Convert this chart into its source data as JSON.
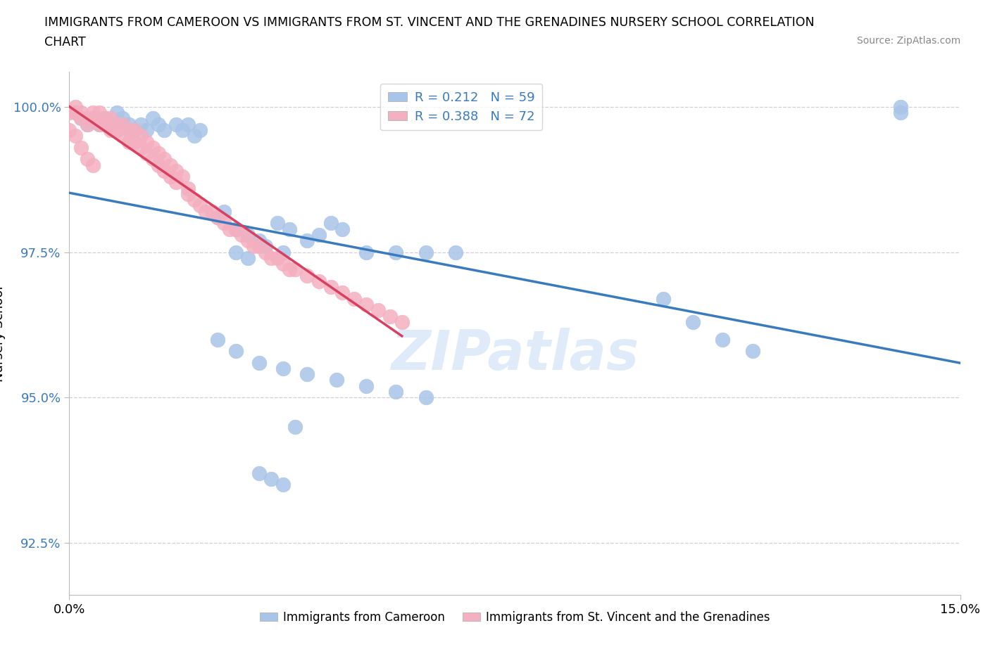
{
  "title_line1": "IMMIGRANTS FROM CAMEROON VS IMMIGRANTS FROM ST. VINCENT AND THE GRENADINES NURSERY SCHOOL CORRELATION",
  "title_line2": "CHART",
  "source": "Source: ZipAtlas.com",
  "ylabel": "Nursery School",
  "xlim": [
    0.0,
    0.15
  ],
  "ylim": [
    0.916,
    1.006
  ],
  "yticks": [
    0.925,
    0.95,
    0.975,
    1.0
  ],
  "ytick_labels": [
    "92.5%",
    "95.0%",
    "97.5%",
    "100.0%"
  ],
  "xticks": [
    0.0,
    0.15
  ],
  "xtick_labels": [
    "0.0%",
    "15.0%"
  ],
  "color_blue": "#a8c4e8",
  "color_pink": "#f4afc0",
  "trendline_blue": "#3a7abf",
  "trendline_pink": "#d94060",
  "R_blue": 0.212,
  "N_blue": 59,
  "R_pink": 0.388,
  "N_pink": 72,
  "watermark": "ZIPatlas",
  "background_color": "#ffffff",
  "grid_color": "#d0d0d0",
  "legend_text_color": "#3a7abf",
  "blue_x": [
    0.001,
    0.002,
    0.003,
    0.004,
    0.005,
    0.006,
    0.007,
    0.008,
    0.009,
    0.01,
    0.011,
    0.012,
    0.013,
    0.014,
    0.015,
    0.016,
    0.018,
    0.019,
    0.02,
    0.021,
    0.022,
    0.025,
    0.026,
    0.028,
    0.03,
    0.032,
    0.035,
    0.037,
    0.04,
    0.042,
    0.044,
    0.046,
    0.028,
    0.03,
    0.033,
    0.036,
    0.05,
    0.055,
    0.06,
    0.065,
    0.025,
    0.028,
    0.032,
    0.036,
    0.04,
    0.045,
    0.05,
    0.055,
    0.06,
    0.038,
    0.032,
    0.034,
    0.036,
    0.14,
    0.14,
    0.1,
    0.105,
    0.11,
    0.115
  ],
  "blue_y": [
    0.999,
    0.998,
    0.997,
    0.998,
    0.997,
    0.998,
    0.997,
    0.999,
    0.998,
    0.997,
    0.996,
    0.997,
    0.996,
    0.998,
    0.997,
    0.996,
    0.997,
    0.996,
    0.997,
    0.995,
    0.996,
    0.981,
    0.982,
    0.979,
    0.978,
    0.977,
    0.98,
    0.979,
    0.977,
    0.978,
    0.98,
    0.979,
    0.975,
    0.974,
    0.976,
    0.975,
    0.975,
    0.975,
    0.975,
    0.975,
    0.96,
    0.958,
    0.956,
    0.955,
    0.954,
    0.953,
    0.952,
    0.951,
    0.95,
    0.945,
    0.937,
    0.936,
    0.935,
    1.0,
    0.999,
    0.967,
    0.963,
    0.96,
    0.958
  ],
  "pink_x": [
    0.0,
    0.001,
    0.001,
    0.002,
    0.002,
    0.003,
    0.003,
    0.004,
    0.004,
    0.005,
    0.005,
    0.006,
    0.006,
    0.007,
    0.007,
    0.008,
    0.008,
    0.009,
    0.009,
    0.01,
    0.01,
    0.011,
    0.011,
    0.012,
    0.012,
    0.013,
    0.013,
    0.014,
    0.014,
    0.015,
    0.015,
    0.016,
    0.016,
    0.017,
    0.017,
    0.018,
    0.018,
    0.019,
    0.02,
    0.02,
    0.021,
    0.022,
    0.023,
    0.024,
    0.025,
    0.026,
    0.027,
    0.028,
    0.029,
    0.03,
    0.031,
    0.032,
    0.033,
    0.034,
    0.035,
    0.036,
    0.037,
    0.038,
    0.04,
    0.042,
    0.044,
    0.046,
    0.048,
    0.05,
    0.052,
    0.054,
    0.056,
    0.0,
    0.001,
    0.002,
    0.003,
    0.004
  ],
  "pink_y": [
    0.999,
    1.0,
    0.999,
    0.999,
    0.998,
    0.998,
    0.997,
    0.999,
    0.998,
    0.999,
    0.997,
    0.998,
    0.997,
    0.998,
    0.996,
    0.997,
    0.996,
    0.997,
    0.995,
    0.996,
    0.994,
    0.996,
    0.994,
    0.995,
    0.993,
    0.994,
    0.992,
    0.993,
    0.991,
    0.992,
    0.99,
    0.991,
    0.989,
    0.99,
    0.988,
    0.989,
    0.987,
    0.988,
    0.986,
    0.985,
    0.984,
    0.983,
    0.982,
    0.982,
    0.981,
    0.98,
    0.979,
    0.979,
    0.978,
    0.977,
    0.976,
    0.976,
    0.975,
    0.974,
    0.974,
    0.973,
    0.972,
    0.972,
    0.971,
    0.97,
    0.969,
    0.968,
    0.967,
    0.966,
    0.965,
    0.964,
    0.963,
    0.996,
    0.995,
    0.993,
    0.991,
    0.99
  ]
}
